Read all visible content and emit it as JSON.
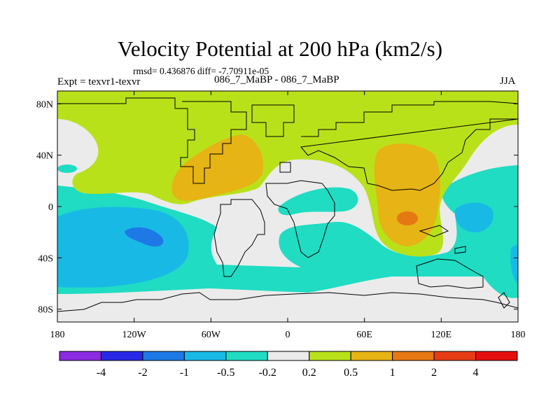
{
  "title": "Velocity Potential at 200 hPa (km2/s)",
  "stats_line": "rmsd= 0.436876 diff= -7.70911e-05",
  "experiment": "Expt = texvr1-texvr",
  "comparison": "086_7_MaBP - 086_7_MaBP",
  "season": "JJA",
  "map": {
    "projection": "cylindrical equidistant",
    "lon_range": [
      -180,
      180
    ],
    "lat_range": [
      -90,
      90
    ],
    "lat_ticks": [
      {
        "value": 80,
        "label": "80N"
      },
      {
        "value": 40,
        "label": "40N"
      },
      {
        "value": 0,
        "label": "0"
      },
      {
        "value": -40,
        "label": "40S"
      },
      {
        "value": -80,
        "label": "80S"
      }
    ],
    "lon_ticks": [
      {
        "value": -180,
        "label": "180"
      },
      {
        "value": -120,
        "label": "120W"
      },
      {
        "value": -60,
        "label": "60W"
      },
      {
        "value": 0,
        "label": "0"
      },
      {
        "value": 60,
        "label": "60E"
      },
      {
        "value": 120,
        "label": "120E"
      },
      {
        "value": 180,
        "label": "180"
      }
    ]
  },
  "colorbar": {
    "colors": [
      "#8b2be2",
      "#2828e6",
      "#1e78e6",
      "#19b9e6",
      "#1fdcc3",
      "#ebebeb",
      "#b9e11a",
      "#e6b414",
      "#e67814",
      "#e63c14",
      "#e60f0f"
    ],
    "labels": [
      "-4",
      "-2",
      "-1",
      "-0.5",
      "-0.2",
      "0.2",
      "0.5",
      "1",
      "2",
      "4"
    ]
  },
  "palette": {
    "neutral": "#ebebeb",
    "cyan": "#1fdcc3",
    "blue": "#19b9e6",
    "dblue": "#1e78e6",
    "lime": "#b9e11a",
    "gold": "#e6b414",
    "orange": "#e67814"
  }
}
